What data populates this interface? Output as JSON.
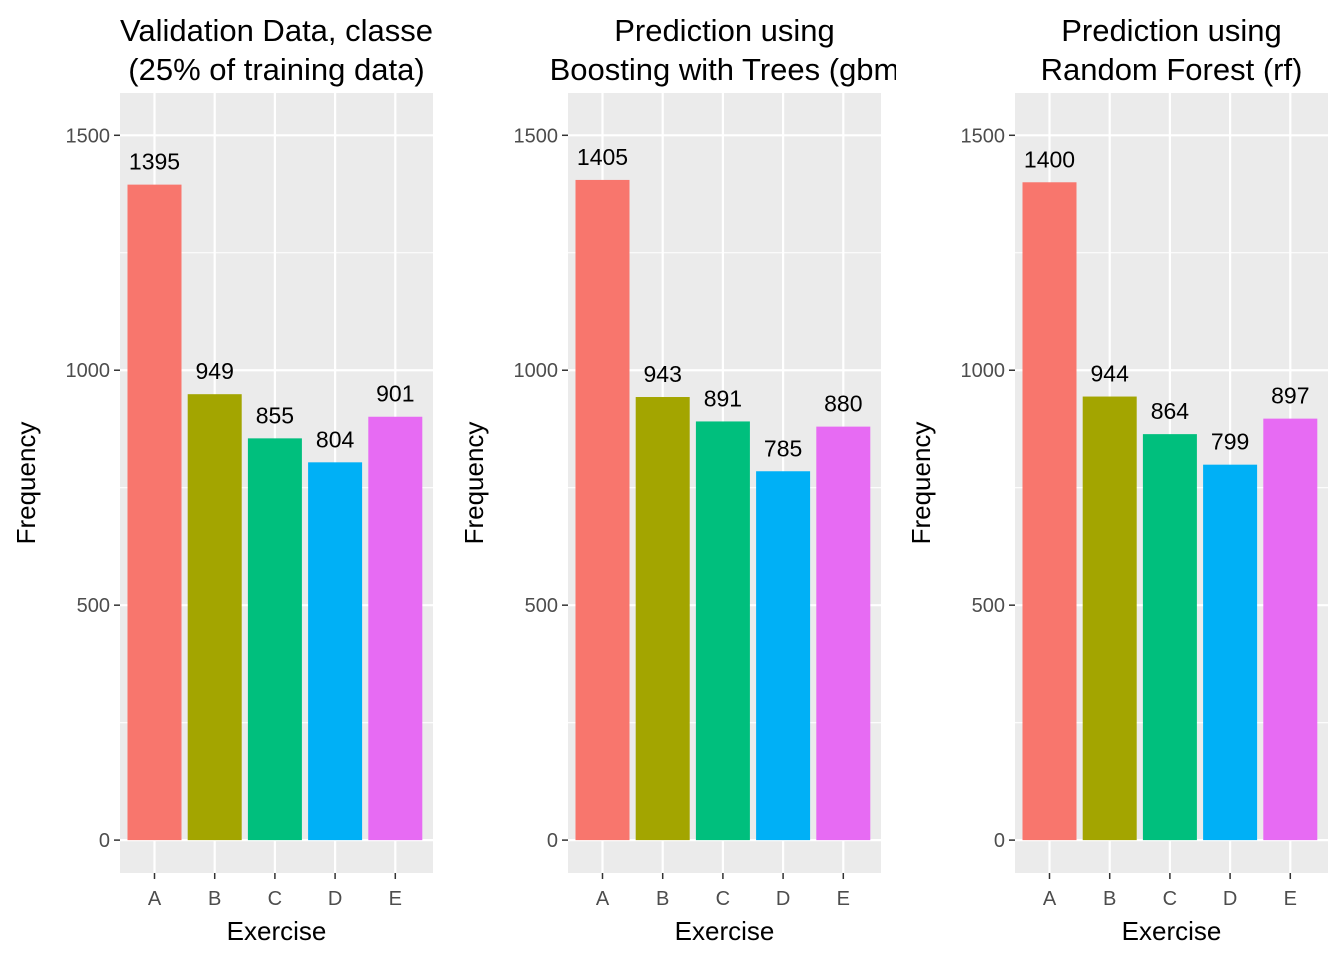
{
  "colors": {
    "panel_background": "#ebebeb",
    "gridline": "#ffffff",
    "tick_label": "#4d4d4d",
    "tick_mark": "#333333",
    "series_colors": [
      "#f8766d",
      "#a3a500",
      "#00bf7d",
      "#00b0f6",
      "#e76bf3"
    ]
  },
  "chart_data": [
    {
      "type": "bar",
      "title_lines": [
        "Validation Data, classe",
        "(25% of training data)"
      ],
      "xlabel": "Exercise",
      "ylabel": "Frequency",
      "categories": [
        "A",
        "B",
        "C",
        "D",
        "E"
      ],
      "values": [
        1395,
        949,
        855,
        804,
        901
      ],
      "data_labels": [
        "1395",
        "949",
        "855",
        "804",
        "901"
      ],
      "ylim": [
        -70,
        1590
      ],
      "yticks": [
        0,
        500,
        1000,
        1500
      ],
      "ytick_labels": [
        "0",
        "500",
        "1000",
        "1500"
      ],
      "grid": true,
      "legend": "none"
    },
    {
      "type": "bar",
      "title_lines": [
        "Prediction using",
        "Boosting with Trees (gbm"
      ],
      "xlabel": "Exercise",
      "ylabel": "Frequency",
      "categories": [
        "A",
        "B",
        "C",
        "D",
        "E"
      ],
      "values": [
        1405,
        943,
        891,
        785,
        880
      ],
      "data_labels": [
        "1405",
        "943",
        "891",
        "785",
        "880"
      ],
      "ylim": [
        -70,
        1590
      ],
      "yticks": [
        0,
        500,
        1000,
        1500
      ],
      "ytick_labels": [
        "0",
        "500",
        "1000",
        "1500"
      ],
      "grid": true,
      "legend": "none"
    },
    {
      "type": "bar",
      "title_lines": [
        "Prediction using",
        "Random Forest (rf)"
      ],
      "xlabel": "Exercise",
      "ylabel": "Frequency",
      "categories": [
        "A",
        "B",
        "C",
        "D",
        "E"
      ],
      "values": [
        1400,
        944,
        864,
        799,
        897
      ],
      "data_labels": [
        "1400",
        "944",
        "864",
        "799",
        "897"
      ],
      "ylim": [
        -70,
        1590
      ],
      "yticks": [
        0,
        500,
        1000,
        1500
      ],
      "ytick_labels": [
        "0",
        "500",
        "1000",
        "1500"
      ],
      "grid": true,
      "legend": "none"
    }
  ]
}
